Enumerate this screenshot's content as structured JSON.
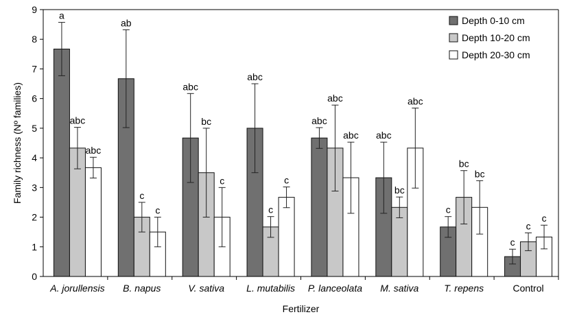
{
  "chart_data": {
    "type": "bar",
    "title": "",
    "xlabel": "Fertilizer",
    "ylabel": "Family richness (Nº families)",
    "ylim": [
      0,
      9
    ],
    "yticks": [
      0,
      1,
      2,
      3,
      4,
      5,
      6,
      7,
      8,
      9
    ],
    "grid": false,
    "legend_position": "top-right",
    "categories": [
      "A. jorullensis",
      "B. napus",
      "V. sativa",
      "L. mutabilis",
      "P. lanceolata",
      "M. sativa",
      "T. repens",
      "Control"
    ],
    "italic_categories": [
      true,
      true,
      true,
      true,
      true,
      true,
      true,
      false
    ],
    "series": [
      {
        "name": "Depth 0-10 cm",
        "color": "#707070",
        "values": [
          7.67,
          6.67,
          4.67,
          5.0,
          4.67,
          3.33,
          1.67,
          0.67
        ],
        "errors": [
          0.9,
          1.65,
          1.5,
          1.5,
          0.35,
          1.2,
          0.35,
          0.25
        ],
        "labels": [
          "a",
          "ab",
          "abc",
          "abc",
          "abc",
          "abc",
          "c",
          "c"
        ]
      },
      {
        "name": "Depth 10-20 cm",
        "color": "#c8c8c8",
        "values": [
          4.33,
          2.0,
          3.5,
          1.67,
          4.33,
          2.33,
          2.67,
          1.17
        ],
        "errors": [
          0.7,
          0.5,
          1.5,
          0.35,
          1.45,
          0.35,
          0.9,
          0.3
        ],
        "labels": [
          "abc",
          "c",
          "bc",
          "c",
          "abc",
          "bc",
          "bc",
          "c"
        ]
      },
      {
        "name": "Depth 20-30 cm",
        "color": "#ffffff",
        "values": [
          3.67,
          1.5,
          2.0,
          2.67,
          3.33,
          4.33,
          2.33,
          1.33
        ],
        "errors": [
          0.35,
          0.5,
          1.0,
          0.35,
          1.2,
          1.35,
          0.9,
          0.4
        ],
        "labels": [
          "abc",
          "c",
          "c",
          "c",
          "abc",
          "abc",
          "bc",
          "c"
        ]
      }
    ]
  }
}
